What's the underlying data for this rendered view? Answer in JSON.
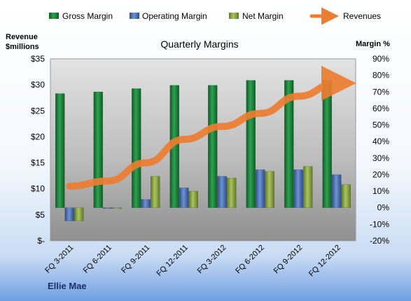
{
  "chart_data": {
    "type": "bar",
    "title": "Quarterly Margins",
    "y_left_label": [
      "Revenue",
      "$millions"
    ],
    "y_right_label": "Margin %",
    "footer": "Ellie Mae",
    "categories": [
      "FQ 3-2011",
      "FQ 6-2011",
      "FQ 9-2011",
      "FQ 12-2011",
      "FQ 3-2012",
      "FQ 6-2012",
      "FQ 9-2012",
      "FQ 12-2012"
    ],
    "y_left": {
      "min": 0,
      "max": 35,
      "step": 5,
      "ticks": [
        "$-",
        "$5",
        "$10",
        "$15",
        "$20",
        "$25",
        "$30",
        "$35"
      ]
    },
    "y_right": {
      "min": -20,
      "max": 90,
      "step": 10,
      "ticks": [
        "-20%",
        "-10%",
        "0%",
        "10%",
        "20%",
        "30%",
        "40%",
        "50%",
        "60%",
        "70%",
        "80%",
        "90%"
      ]
    },
    "series": [
      {
        "name": "Gross Margin",
        "axis": "right",
        "kind": "bar",
        "color": "#1f8a3c",
        "values": [
          69,
          70,
          72,
          74,
          74,
          77,
          77,
          77
        ]
      },
      {
        "name": "Operating Margin",
        "axis": "right",
        "kind": "bar",
        "color": "#4a6fb5",
        "values": [
          -8,
          0,
          5,
          12,
          19,
          23,
          23,
          20
        ]
      },
      {
        "name": "Net Margin",
        "axis": "right",
        "kind": "bar",
        "color": "#8faa45",
        "values": [
          -8,
          0,
          19,
          10,
          18,
          22,
          25,
          14
        ]
      },
      {
        "name": "Revenues",
        "axis": "left",
        "kind": "line",
        "color": "#ed7d31",
        "values": [
          10.5,
          11.5,
          15,
          19.5,
          22,
          24.5,
          27.8,
          30.3
        ]
      }
    ],
    "grid": false,
    "legend_position": "top"
  }
}
